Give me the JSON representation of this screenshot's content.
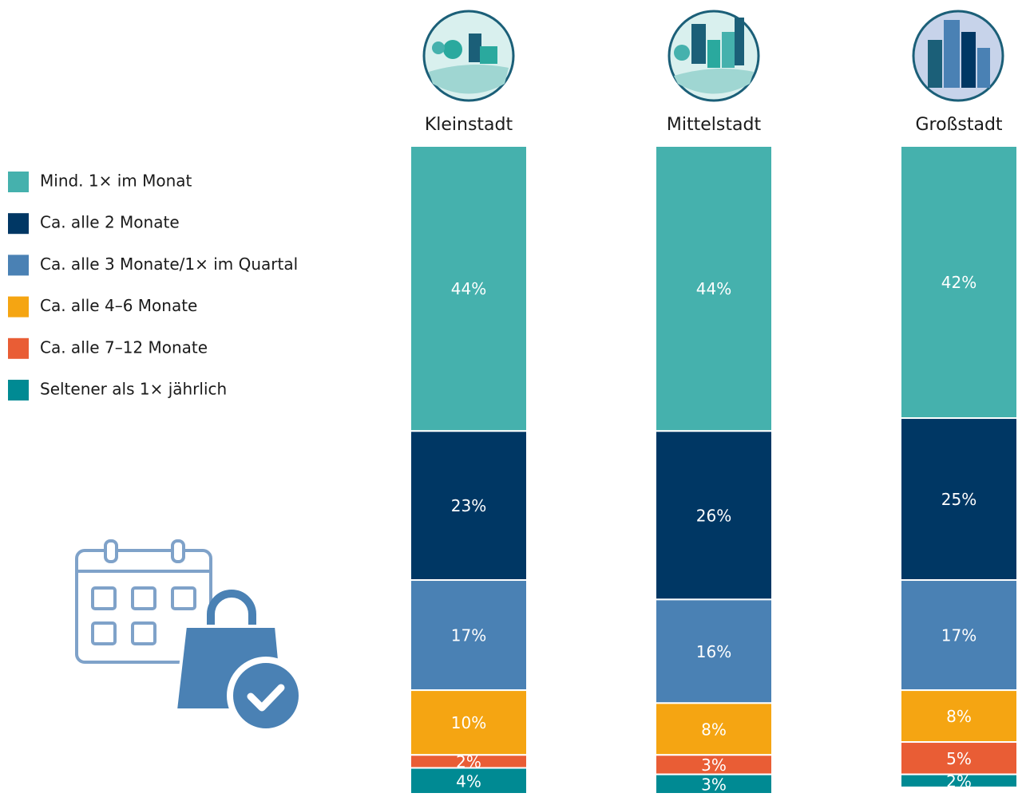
{
  "chart_data": {
    "type": "stacked-bar",
    "categories": [
      "Kleinstadt",
      "Mittelstadt",
      "Großstadt"
    ],
    "ylim": [
      0,
      100
    ],
    "series": [
      {
        "name": "Mind. 1× im Monat",
        "color": "#45b1ad",
        "values": [
          44,
          44,
          42
        ],
        "value_labels": [
          "44%",
          "44%",
          "42%"
        ]
      },
      {
        "name": "Ca. alle 2 Monate",
        "color": "#003764",
        "values": [
          23,
          26,
          25
        ],
        "value_labels": [
          "23%",
          "26%",
          "25%"
        ]
      },
      {
        "name": "Ca. alle 3 Monate/1× im Quartal",
        "color": "#4a81b4",
        "values": [
          17,
          16,
          17
        ],
        "value_labels": [
          "17%",
          "16%",
          "17%"
        ]
      },
      {
        "name": "Ca. alle 4–6 Monate",
        "color": "#f5a512",
        "values": [
          10,
          8,
          8
        ],
        "value_labels": [
          "10%",
          "8%",
          "8%"
        ]
      },
      {
        "name": "Ca. alle 7–12 Monate",
        "color": "#e95d35",
        "values": [
          2,
          3,
          5
        ],
        "value_labels": [
          "2%",
          "3%",
          "5%"
        ]
      },
      {
        "name": "Seltener als 1× jährlich",
        "color": "#008a93",
        "values": [
          4,
          3,
          2
        ],
        "value_labels": [
          "4%",
          "3%",
          "2%"
        ]
      }
    ]
  }
}
